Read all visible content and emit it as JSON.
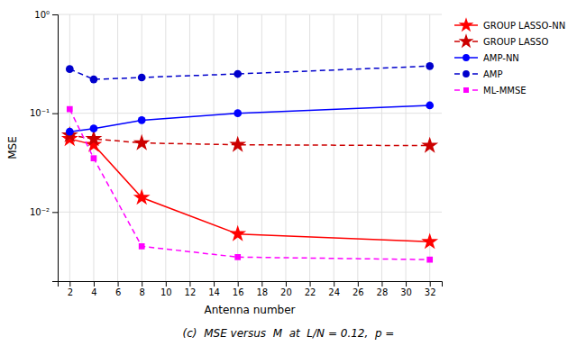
{
  "chart_data": {
    "type": "line",
    "title": "(c)  MSE versus  M  at  L/N = 0.12,  p =",
    "x_label": "Antenna number",
    "y_label": "MSE",
    "x": [
      2,
      4,
      8,
      16,
      32
    ],
    "series": [
      {
        "name": "GROUP LASSO-NN",
        "color": "#FF0000",
        "marker": "star",
        "line_style": "solid",
        "values": [
          0.055,
          0.048,
          0.014,
          0.006,
          0.005
        ]
      },
      {
        "name": "GROUP LASSO",
        "color": "#CC0000",
        "marker": "star",
        "line_style": "dashed",
        "values": [
          0.06,
          0.055,
          0.05,
          0.048,
          0.047
        ]
      },
      {
        "name": "AMP-NN",
        "color": "#0000FF",
        "marker": "circle",
        "line_style": "solid",
        "values": [
          0.065,
          0.07,
          0.085,
          0.1,
          0.12
        ]
      },
      {
        "name": "AMP",
        "color": "#0000CC",
        "marker": "circle",
        "line_style": "dashed",
        "values": [
          0.28,
          0.22,
          0.23,
          0.25,
          0.3
        ]
      },
      {
        "name": "ML-MMSE",
        "color": "#FF00FF",
        "marker": "square",
        "line_style": "dashed",
        "values": [
          0.11,
          0.035,
          0.0045,
          0.0035,
          0.0033
        ]
      }
    ],
    "xlim": [
      1,
      33
    ],
    "xticks": [
      2,
      4,
      6,
      8,
      10,
      12,
      14,
      16,
      18,
      20,
      22,
      24,
      26,
      28,
      30,
      32
    ],
    "ylim": [
      0.002,
      1.0
    ],
    "yticks": [
      {
        "value": 0.01,
        "label": "10⁻²"
      },
      {
        "value": 0.1,
        "label": "10⁻¹"
      },
      {
        "value": 1,
        "label": "10⁰"
      }
    ],
    "log": "y",
    "grid": true,
    "legend": "upper right"
  }
}
